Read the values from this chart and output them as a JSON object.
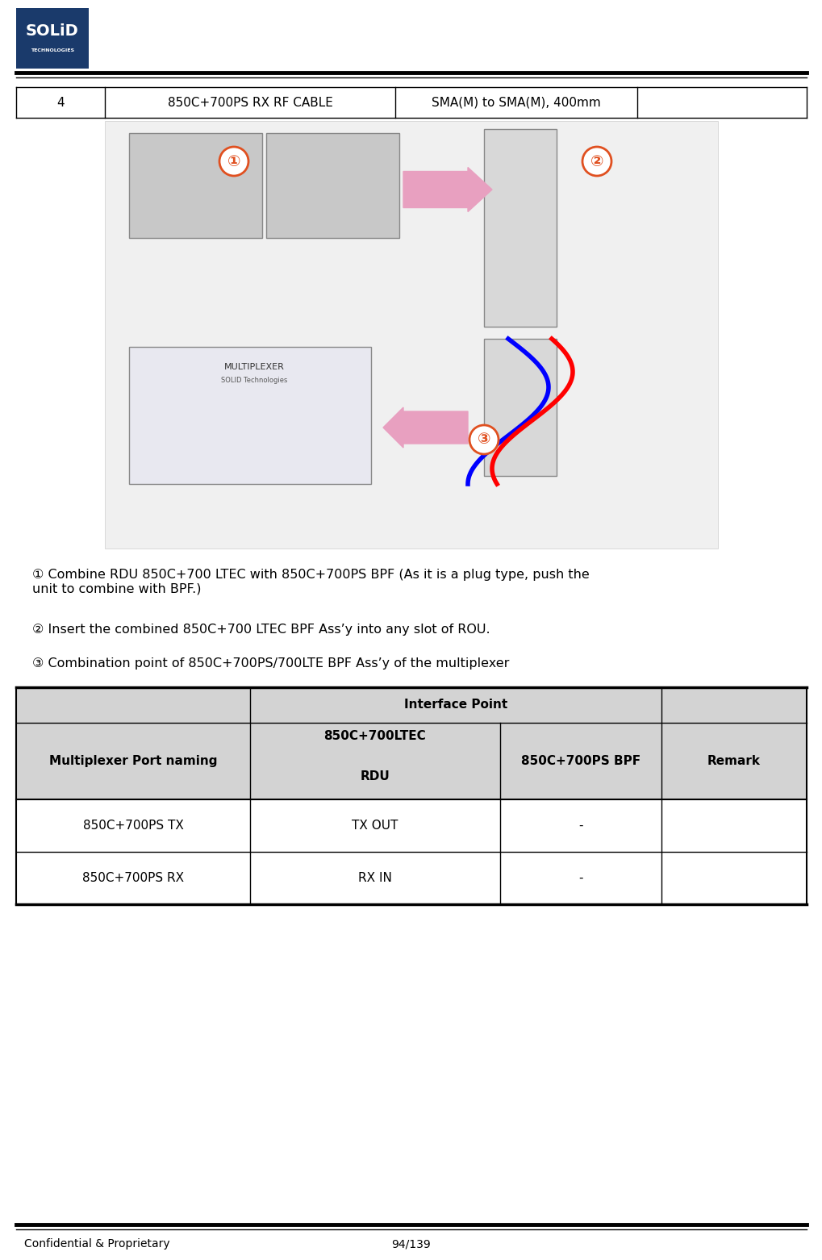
{
  "page_width": 10.2,
  "page_height": 15.62,
  "logo_bg": "#1a3a6b",
  "table_row_num": "4",
  "table_row_item": "850C+700PS RX RF CABLE",
  "table_row_spec": "SMA(M) to SMA(M), 400mm",
  "step1_circle": "①",
  "step1_text": " Combine RDU 850C+700 LTEC with 850C+700PS BPF (As it is a plug type, push the\nunit to combine with BPF.)",
  "step2_circle": "②",
  "step2_text": " Insert the combined 850C+700 LTEC BPF Ass’y into any slot of ROU.",
  "step3_circle": "③",
  "step3_text": " Combination point of 850C+700PS/700LTE BPF Ass’y of the multiplexer",
  "data_rows": [
    [
      "850C+700PS TX",
      "TX OUT",
      "-",
      ""
    ],
    [
      "850C+700PS RX",
      "RX IN",
      "-",
      ""
    ]
  ],
  "footer_left": "Confidential & Proprietary",
  "footer_right": "94/139",
  "bg_color": "#ffffff",
  "table_header_bg": "#d3d3d3",
  "border_color": "#000000",
  "text_color": "#000000"
}
